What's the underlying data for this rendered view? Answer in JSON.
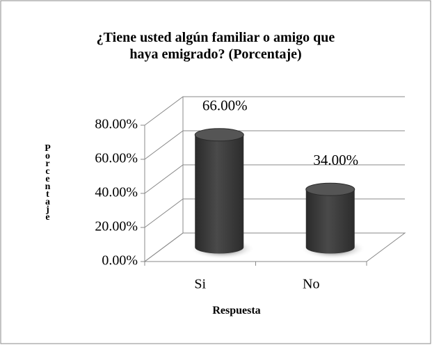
{
  "chart_data": {
    "type": "bar3d",
    "title": "¿Tiene usted algún familiar o amigo que haya emigrado? (Porcentaje)",
    "x_label": "Respuesta",
    "y_label": "Porcentaje",
    "categories": [
      "Si",
      "No"
    ],
    "values": [
      66,
      34
    ],
    "value_labels": [
      "66.00%",
      "34.00%"
    ],
    "color": "#3c3c3c",
    "ylim": [
      0,
      80
    ],
    "yticks": [
      {
        "value": 0,
        "label": "0.00%"
      },
      {
        "value": 20,
        "label": "20.00%"
      },
      {
        "value": 40,
        "label": "40.00%"
      },
      {
        "value": 60,
        "label": "60.00%"
      },
      {
        "value": 80,
        "label": "80.00%"
      }
    ],
    "grid": true
  }
}
